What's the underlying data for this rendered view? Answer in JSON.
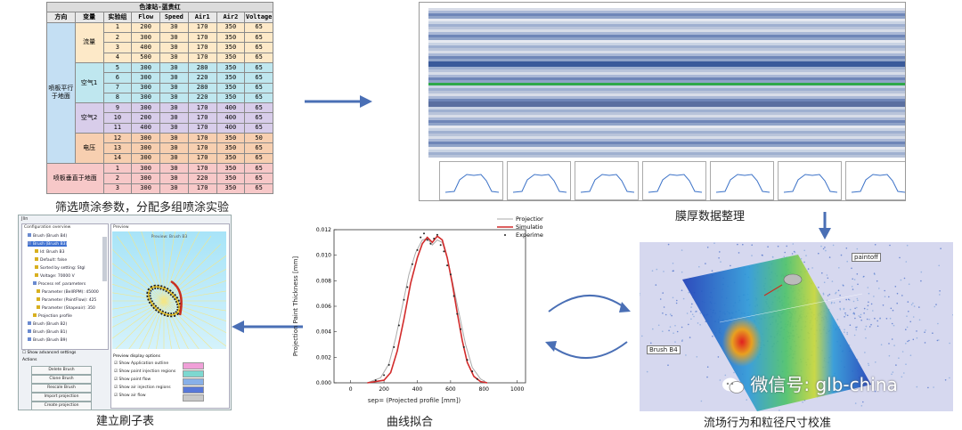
{
  "captions": {
    "table": "筛选喷涂参数，分配多组喷涂实验",
    "film": "膜厚数据整理",
    "brush": "建立刷子表",
    "curve": "曲线拟合",
    "flow": "流场行为和粒径尺寸校准"
  },
  "param_table": {
    "title": "色漆站-蓝贵红",
    "headers": [
      "方向",
      "变量",
      "实验组",
      "Flow",
      "Speed",
      "Air1",
      "Air2",
      "Voltage"
    ],
    "direction_groups": [
      "喷板平行于地面",
      "喷板垂直于地面"
    ],
    "variable_groups": [
      "流量",
      "空气1",
      "空气2",
      "电压"
    ],
    "rows": [
      [
        "1",
        "200",
        "30",
        "170",
        "350",
        "65"
      ],
      [
        "2",
        "300",
        "30",
        "170",
        "350",
        "65"
      ],
      [
        "3",
        "400",
        "30",
        "170",
        "350",
        "65"
      ],
      [
        "4",
        "500",
        "30",
        "170",
        "350",
        "65"
      ],
      [
        "5",
        "300",
        "30",
        "280",
        "350",
        "65"
      ],
      [
        "6",
        "300",
        "30",
        "220",
        "350",
        "65"
      ],
      [
        "7",
        "300",
        "30",
        "280",
        "350",
        "65"
      ],
      [
        "8",
        "300",
        "30",
        "220",
        "350",
        "65"
      ],
      [
        "9",
        "300",
        "30",
        "170",
        "400",
        "65"
      ],
      [
        "10",
        "200",
        "30",
        "170",
        "400",
        "65"
      ],
      [
        "11",
        "400",
        "30",
        "170",
        "400",
        "65"
      ],
      [
        "12",
        "300",
        "30",
        "170",
        "350",
        "50"
      ],
      [
        "13",
        "300",
        "30",
        "170",
        "350",
        "65"
      ],
      [
        "14",
        "300",
        "30",
        "170",
        "350",
        "65"
      ],
      [
        "1",
        "300",
        "30",
        "170",
        "350",
        "65"
      ],
      [
        "2",
        "300",
        "30",
        "220",
        "350",
        "65"
      ],
      [
        "3",
        "300",
        "30",
        "170",
        "350",
        "65"
      ]
    ]
  },
  "brush_app": {
    "title": "Jlin",
    "panel_config": "Configuration overview",
    "panel_preview": "Preview",
    "tree": [
      "Brush (Brush B4)",
      "Brush (Brush B3)",
      "Id: Brush B3",
      "Default: false",
      "Sorted by setting: Stgl",
      "Voltage: 70000 V",
      "Process ref. parameters",
      "Parameter (BellRPM): 45000",
      "Parameter (PaintFlow): 425",
      "Parameter (Shapeair): 350",
      "Projection profile",
      "Brush (Brush B2)",
      "Brush (Brush B1)",
      "Brush (Brush B9)"
    ],
    "show_advanced": "Show advanced settings",
    "actions_label": "Actions",
    "buttons": [
      "Delete Brush",
      "Clone Brush",
      "Rescale Brush",
      "Import projection",
      "Create projection"
    ],
    "preview_options_label": "Preview display options",
    "preview_options": [
      "Show Application outline",
      "Show paint injection regions",
      "Show paint flow",
      "Show air injection regions",
      "Show air flow"
    ],
    "preview_swatch_colors": [
      "#f0a0d8",
      "#7dd8d0",
      "#88b0e8",
      "#5878d8",
      "#c8c8c8"
    ],
    "preview_heading": "Preview: Brush B3"
  },
  "chart_data": {
    "type": "line",
    "xlabel": "sep= (Projected profile [mm])",
    "ylabel": "Projection Paint Thickness [mm]",
    "xlim": [
      -100,
      1050
    ],
    "ylim": [
      0,
      0.012
    ],
    "xticks": [
      "0",
      "200",
      "400",
      "600",
      "800",
      "1000"
    ],
    "yticks": [
      "0.000",
      "0.002",
      "0.004",
      "0.006",
      "0.008",
      "0.010",
      "0.012"
    ],
    "legend_position": "top-right",
    "series": [
      {
        "name": "Projection",
        "x": [
          100,
          180,
          230,
          270,
          310,
          350,
          390,
          430,
          460,
          490,
          520,
          550,
          580,
          610,
          650,
          690,
          730,
          780,
          820
        ],
        "y": [
          0.0,
          0.0004,
          0.0015,
          0.0035,
          0.006,
          0.0085,
          0.0102,
          0.0112,
          0.0113,
          0.0108,
          0.0112,
          0.011,
          0.0098,
          0.008,
          0.0055,
          0.003,
          0.0012,
          0.0003,
          0.0
        ]
      },
      {
        "name": "Simulation",
        "x": [
          100,
          200,
          240,
          280,
          320,
          360,
          400,
          430,
          460,
          490,
          520,
          550,
          580,
          610,
          640,
          670,
          700,
          740,
          780,
          820
        ],
        "y": [
          0.0,
          0.0002,
          0.0008,
          0.0025,
          0.005,
          0.0078,
          0.0098,
          0.0109,
          0.0114,
          0.011,
          0.0115,
          0.0112,
          0.0098,
          0.0078,
          0.0055,
          0.0033,
          0.0016,
          0.0005,
          0.0001,
          0.0
        ]
      },
      {
        "name": "Experiment",
        "x": [
          150,
          200,
          230,
          260,
          290,
          320,
          340,
          370,
          400,
          420,
          440,
          460,
          480,
          500,
          520,
          540,
          560,
          580,
          600,
          620,
          640,
          660,
          680,
          700,
          730,
          760
        ],
        "y": [
          0.0002,
          0.0006,
          0.0014,
          0.0028,
          0.0045,
          0.0065,
          0.0075,
          0.0093,
          0.0104,
          0.0114,
          0.0117,
          0.0112,
          0.0109,
          0.0113,
          0.0116,
          0.0108,
          0.0103,
          0.0092,
          0.0085,
          0.0068,
          0.0054,
          0.0042,
          0.0028,
          0.0018,
          0.0009,
          0.0003
        ]
      }
    ]
  },
  "sim_labels": {
    "paintoff": "paintoff",
    "brush": "Brush B4"
  },
  "watermark": "微信号: glb-china",
  "colors": {
    "arrow": "#4a6fb5",
    "flow_rows": "#fde9c8",
    "air1_rows": "#bfe7ef",
    "air2_rows": "#d8cdea",
    "voltage_rows": "#f7cfb0",
    "direction_cell": "#c4dff3",
    "vertical_rows": "#f7c8c8",
    "variable_cell": "#d9ecc8",
    "sim_red": "#d22b2b",
    "proj_gray": "#aaaaaa",
    "exp_black": "#222222"
  }
}
